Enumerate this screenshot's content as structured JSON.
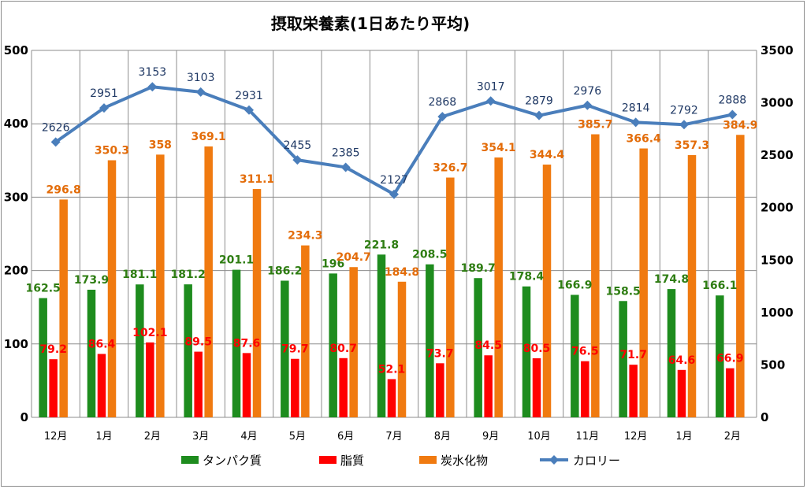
{
  "chart_data": {
    "type": "bar",
    "title": "摂取栄養素(1日あたり平均)",
    "categories": [
      "12月",
      "1月",
      "2月",
      "3月",
      "4月",
      "5月",
      "6月",
      "7月",
      "8月",
      "9月",
      "10月",
      "11月",
      "12月",
      "1月",
      "2月"
    ],
    "series": [
      {
        "name": "タンパク質",
        "type": "bar",
        "axis": "left",
        "color": "#1e8c1e",
        "values": [
          162.5,
          173.9,
          181.1,
          181.2,
          201.1,
          186.2,
          196,
          221.8,
          208.5,
          189.7,
          178.4,
          166.9,
          158.5,
          174.8,
          166.1
        ],
        "labels": [
          "162.5",
          "173.9",
          "181.1",
          "181.2",
          "201.1",
          "186.2",
          "196",
          "221.8",
          "208.5",
          "189.7",
          "178.4",
          "166.9",
          "158.5",
          "174.8",
          "166.1"
        ],
        "label_color": "#2e7d12"
      },
      {
        "name": "脂質",
        "type": "bar",
        "axis": "left",
        "color": "#ff0000",
        "values": [
          79.2,
          86.4,
          102.1,
          89.5,
          87.6,
          79.7,
          80.7,
          52.1,
          73.7,
          84.5,
          80.5,
          76.5,
          71.7,
          64.6,
          66.9
        ],
        "labels": [
          "79.2",
          "86.4",
          "102.1",
          "89.5",
          "87.6",
          "79.7",
          "80.7",
          "52.1",
          "73.7",
          "84.5",
          "80.5",
          "76.5",
          "71.7",
          "64.6",
          "66.9"
        ],
        "label_color": "#ff0000"
      },
      {
        "name": "炭水化物",
        "type": "bar",
        "axis": "left",
        "color": "#f07a10",
        "values": [
          296.8,
          350.3,
          358,
          369.1,
          311.1,
          234.3,
          204.7,
          184.8,
          326.7,
          354.1,
          344.4,
          385.7,
          366.4,
          357.3,
          384.9
        ],
        "labels": [
          "296.8",
          "350.3",
          "358",
          "369.1",
          "311.1",
          "234.3",
          "204.7",
          "184.8",
          "326.7",
          "354.1",
          "344.4",
          "385.7",
          "366.4",
          "357.3",
          "384.9"
        ],
        "label_color": "#e36c09"
      },
      {
        "name": "カロリー",
        "type": "line",
        "axis": "right",
        "color": "#4a7ebb",
        "values": [
          2626,
          2951,
          3153,
          3103,
          2931,
          2455,
          2385,
          2127,
          2868,
          3017,
          2879,
          2976,
          2814,
          2792,
          2888
        ],
        "labels": [
          "2626",
          "2951",
          "3153",
          "3103",
          "2931",
          "2455",
          "2385",
          "2127",
          "2868",
          "3017",
          "2879",
          "2976",
          "2814",
          "2792",
          "2888"
        ],
        "label_color": "#1f3864"
      }
    ],
    "y_left": {
      "min": 0,
      "max": 500,
      "ticks": [
        "0",
        "100",
        "200",
        "300",
        "400",
        "500"
      ]
    },
    "y_right": {
      "min": 0,
      "max": 3500,
      "ticks": [
        "0",
        "500",
        "1000",
        "1500",
        "2000",
        "2500",
        "3000",
        "3500"
      ]
    },
    "grid": true,
    "legend_position": "bottom"
  }
}
